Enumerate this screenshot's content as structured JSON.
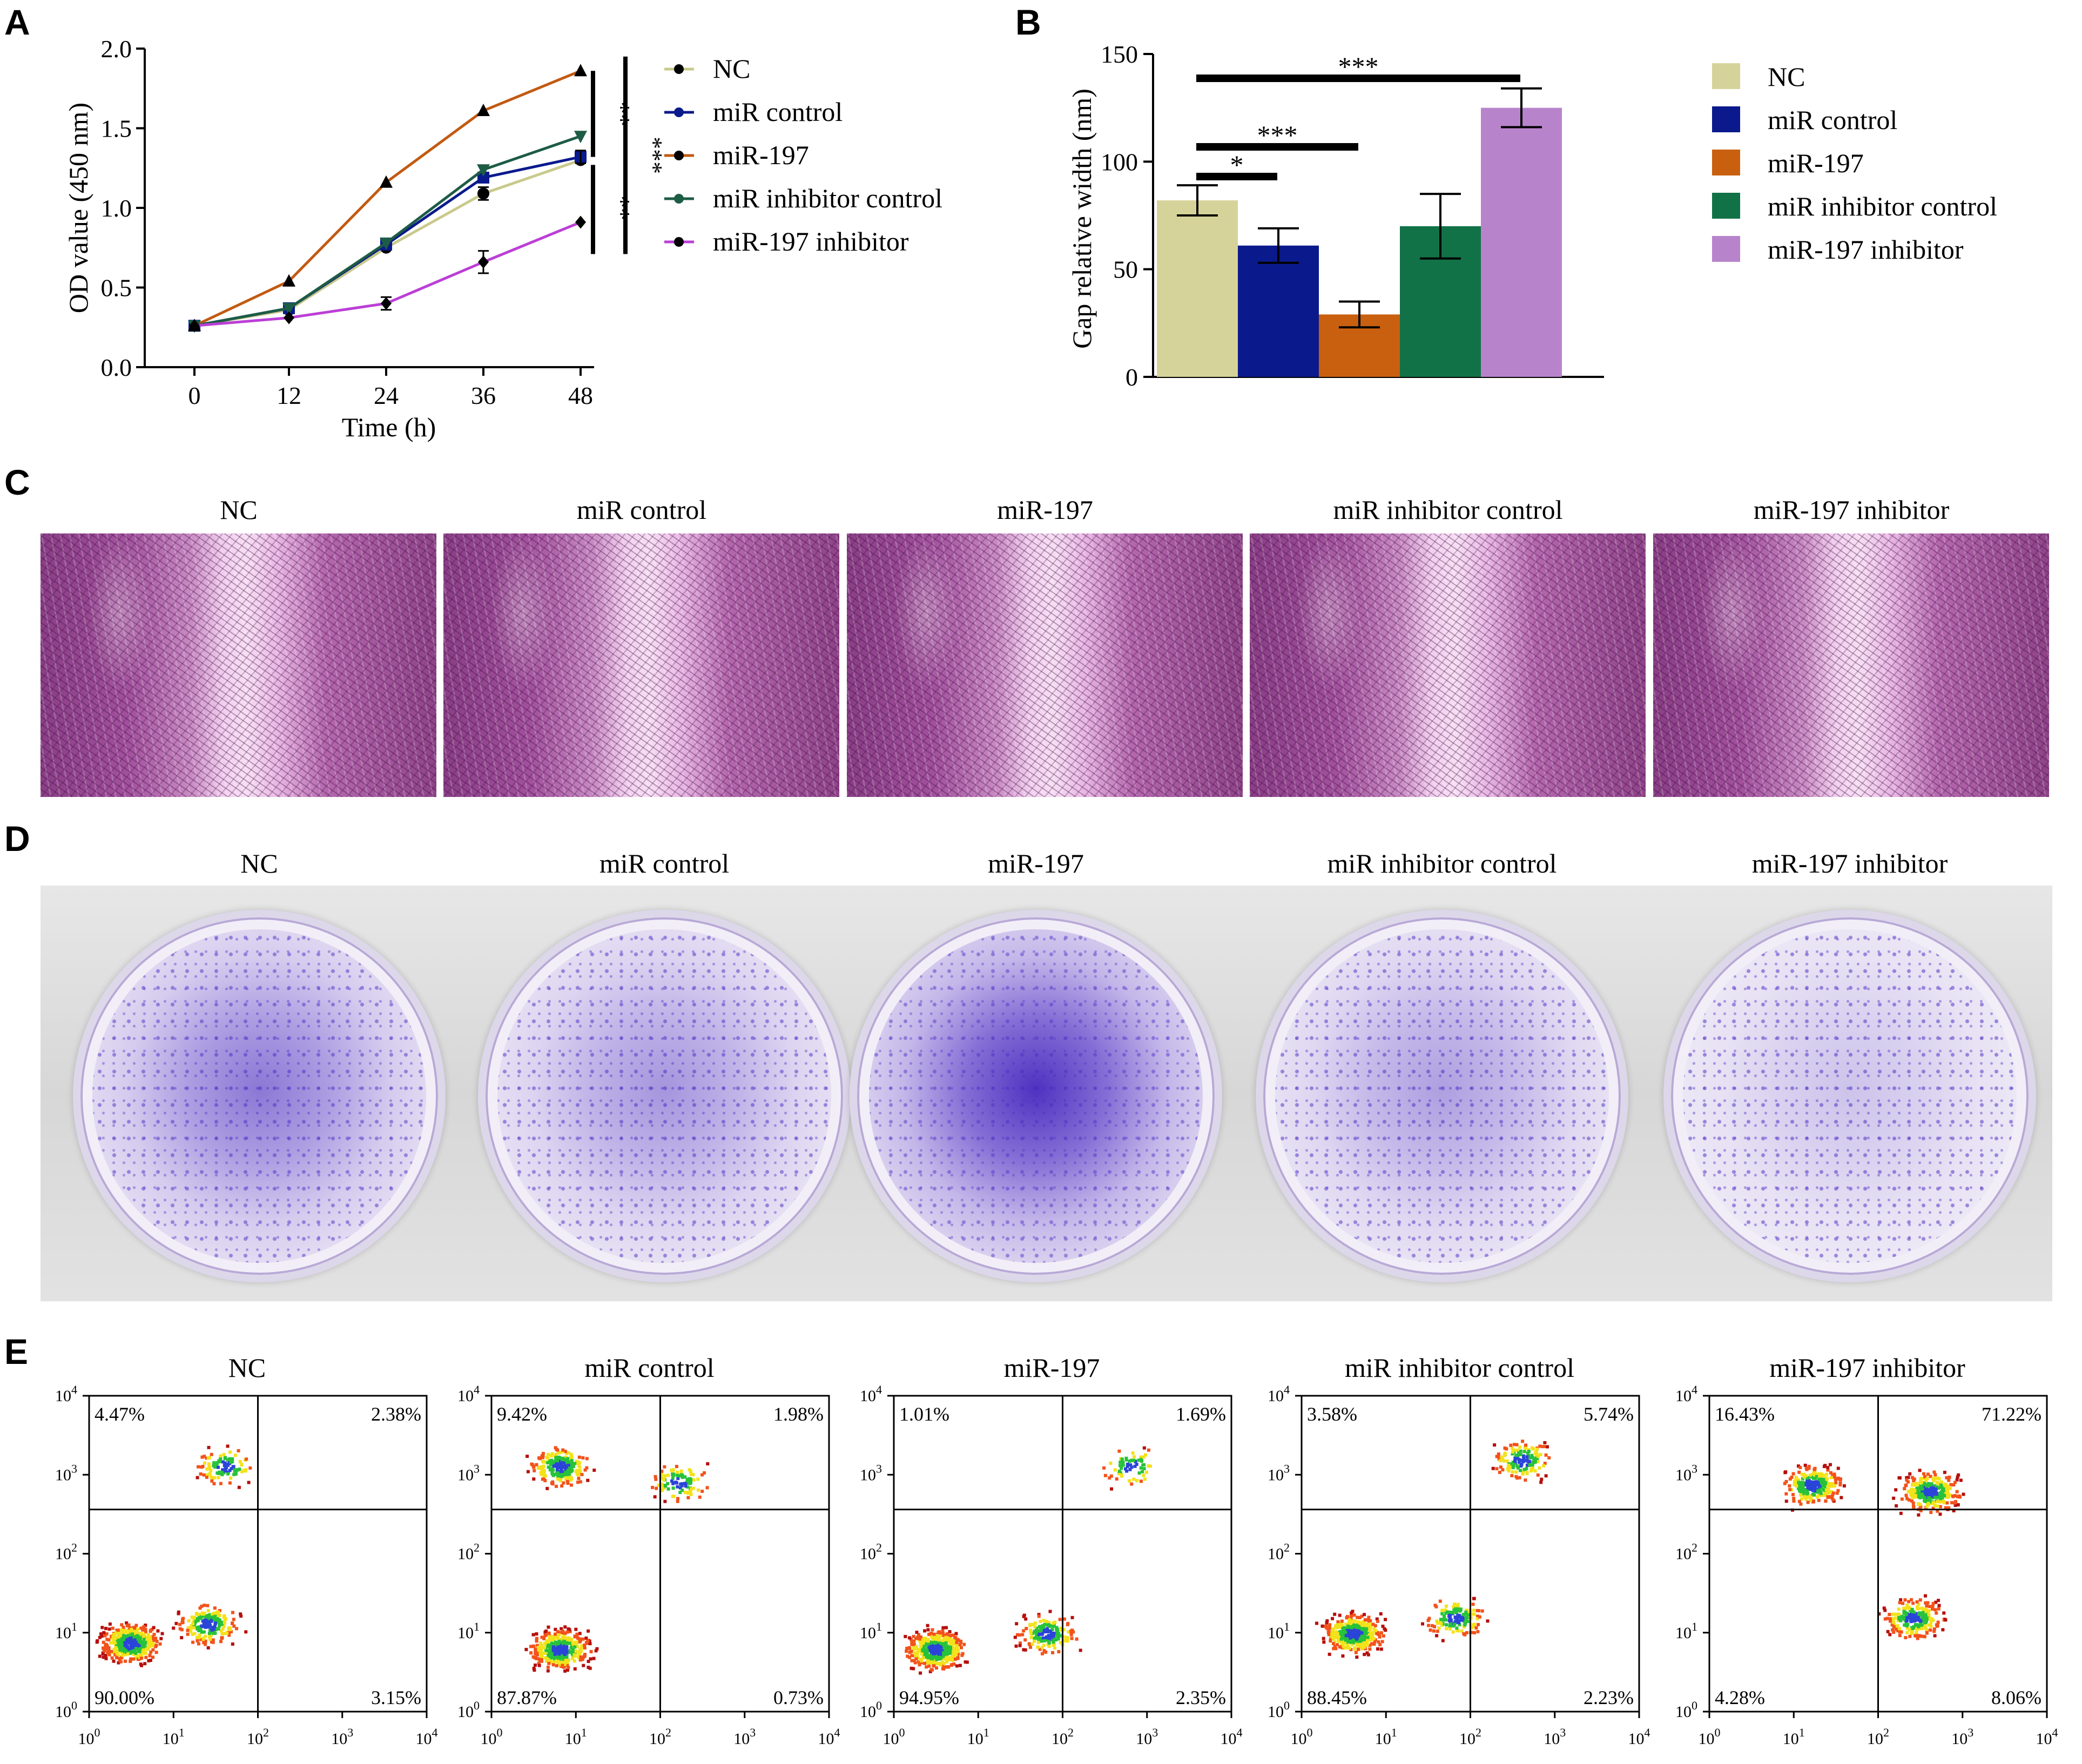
{
  "panels": {
    "A": "A",
    "B": "B",
    "C": "C",
    "D": "D",
    "E": "E"
  },
  "groups": [
    "NC",
    "miR control",
    "miR-197",
    "miR inhibitor control",
    "miR-197 inhibitor"
  ],
  "colors": {
    "NC": "#d6d39a",
    "miR control": "#0a1a8c",
    "miR-197": "#c9600f",
    "miR inhibitor control": "#127247",
    "miR-197 inhibitor": "#b784cc",
    "line_NC": "#c9c98c",
    "line_miR-197": "#c25a12",
    "line_inhibitor": "#bb3fd6",
    "line_inhibitor_control": "#1d5c45"
  },
  "chart_data": [
    {
      "type": "line",
      "panel": "A",
      "title": "",
      "xlabel": "Time (h)",
      "ylabel": "OD value (450 nm)",
      "x": [
        0,
        12,
        24,
        36,
        48
      ],
      "xticks": [
        "0",
        "12",
        "24",
        "36",
        "48"
      ],
      "yticks": [
        "0.0",
        "0.5",
        "1.0",
        "1.5",
        "2.0"
      ],
      "ylim": [
        0,
        2.0
      ],
      "series": [
        {
          "name": "NC",
          "marker": "●",
          "values": [
            0.26,
            0.36,
            0.75,
            1.09,
            1.3
          ]
        },
        {
          "name": "miR control",
          "marker": "■",
          "values": [
            0.26,
            0.37,
            0.77,
            1.19,
            1.32
          ]
        },
        {
          "name": "miR-197",
          "marker": "▲",
          "values": [
            0.26,
            0.54,
            1.16,
            1.61,
            1.86
          ]
        },
        {
          "name": "miR inhibitor control",
          "marker": "▼",
          "values": [
            0.26,
            0.37,
            0.78,
            1.24,
            1.45
          ]
        },
        {
          "name": "miR-197 inhibitor",
          "marker": "◆",
          "values": [
            0.26,
            0.31,
            0.4,
            0.66,
            0.91
          ]
        }
      ],
      "significance": [
        "**",
        "**",
        "***"
      ]
    },
    {
      "type": "bar",
      "panel": "B",
      "title": "",
      "xlabel": "",
      "ylabel": "Gap relative width (nm)",
      "categories": [
        "NC",
        "miR control",
        "miR-197",
        "miR inhibitor control",
        "miR-197 inhibitor"
      ],
      "values": [
        82,
        61,
        29,
        70,
        125
      ],
      "errors": [
        7,
        8,
        6,
        15,
        9
      ],
      "yticks": [
        "0",
        "50",
        "100",
        "150"
      ],
      "ylim": [
        0,
        150
      ],
      "significance": [
        "***",
        "***",
        "*"
      ]
    }
  ],
  "flow": {
    "ticks": [
      "10",
      "10",
      "10",
      "10",
      "10"
    ],
    "exponents": [
      "0",
      "1",
      "2",
      "3",
      "4"
    ],
    "plots": [
      {
        "name": "NC",
        "ul": "4.47%",
        "ur": "2.38%",
        "ll": "90.00%",
        "lr": "3.15%"
      },
      {
        "name": "miR control",
        "ul": "9.42%",
        "ur": "1.98%",
        "ll": "87.87%",
        "lr": "0.73%"
      },
      {
        "name": "miR-197",
        "ul": "1.01%",
        "ur": "1.69%",
        "ll": "94.95%",
        "lr": "2.35%"
      },
      {
        "name": "miR inhibitor control",
        "ul": "3.58%",
        "ur": "5.74%",
        "ll": "88.45%",
        "lr": "2.23%"
      },
      {
        "name": "miR-197 inhibitor",
        "ul": "16.43%",
        "ur": "71.22%",
        "ll": "4.28%",
        "lr": "8.06%"
      }
    ]
  }
}
